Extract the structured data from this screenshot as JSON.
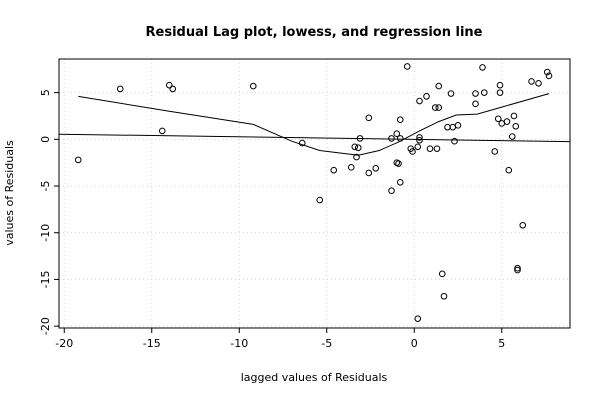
{
  "chart_data": {
    "type": "scatter",
    "title": "Residual Lag plot, lowess, and regression line",
    "xlabel": "lagged values of Residuals",
    "ylabel": "values of Residuals",
    "xlim": [
      -20.3,
      8.9
    ],
    "ylim": [
      -20.2,
      8.6
    ],
    "grid": true,
    "x_ticks": [
      -20,
      -15,
      -10,
      -5,
      0,
      5
    ],
    "y_ticks": [
      -20,
      -15,
      -10,
      -5,
      0,
      5
    ],
    "x_tick_labels": [
      "-20",
      "-15",
      "-10",
      "-5",
      "0",
      "5"
    ],
    "y_tick_labels": [
      "-20",
      "-15",
      "-10",
      "-5",
      "0",
      "5"
    ],
    "points": [
      {
        "x": -19.2,
        "y": -2.2
      },
      {
        "x": -16.8,
        "y": 5.4
      },
      {
        "x": -14.4,
        "y": 0.9
      },
      {
        "x": -14.0,
        "y": 5.8
      },
      {
        "x": -13.8,
        "y": 5.4
      },
      {
        "x": -9.2,
        "y": 5.7
      },
      {
        "x": -6.4,
        "y": -0.4
      },
      {
        "x": -5.4,
        "y": -6.5
      },
      {
        "x": -4.6,
        "y": -3.3
      },
      {
        "x": -3.6,
        "y": -3.0
      },
      {
        "x": -3.4,
        "y": -0.8
      },
      {
        "x": -3.2,
        "y": -0.9
      },
      {
        "x": -3.3,
        "y": -1.9
      },
      {
        "x": -3.1,
        "y": 0.1
      },
      {
        "x": -2.6,
        "y": 2.3
      },
      {
        "x": -2.6,
        "y": -3.6
      },
      {
        "x": -2.2,
        "y": -3.1
      },
      {
        "x": -1.3,
        "y": -5.5
      },
      {
        "x": -1.3,
        "y": 0.1
      },
      {
        "x": -1.0,
        "y": 0.6
      },
      {
        "x": -1.0,
        "y": -2.5
      },
      {
        "x": -0.9,
        "y": -2.6
      },
      {
        "x": -0.8,
        "y": 2.1
      },
      {
        "x": -0.8,
        "y": 0.1
      },
      {
        "x": -0.8,
        "y": -4.6
      },
      {
        "x": -0.4,
        "y": 7.8
      },
      {
        "x": -0.2,
        "y": -1.0
      },
      {
        "x": -0.1,
        "y": -1.3
      },
      {
        "x": 0.2,
        "y": -0.8
      },
      {
        "x": 0.3,
        "y": 0.2
      },
      {
        "x": 0.3,
        "y": 4.1
      },
      {
        "x": 0.2,
        "y": -19.2
      },
      {
        "x": 0.3,
        "y": -0.1
      },
      {
        "x": 0.7,
        "y": 4.6
      },
      {
        "x": 0.9,
        "y": -1.0
      },
      {
        "x": 1.2,
        "y": 3.4
      },
      {
        "x": 1.4,
        "y": 3.4
      },
      {
        "x": 1.4,
        "y": 5.7
      },
      {
        "x": 1.3,
        "y": -1.0
      },
      {
        "x": 1.6,
        "y": -14.4
      },
      {
        "x": 1.7,
        "y": -16.8
      },
      {
        "x": 1.9,
        "y": 1.3
      },
      {
        "x": 2.1,
        "y": 4.9
      },
      {
        "x": 2.2,
        "y": 1.3
      },
      {
        "x": 2.3,
        "y": -0.2
      },
      {
        "x": 2.5,
        "y": 1.5
      },
      {
        "x": 3.5,
        "y": 4.9
      },
      {
        "x": 3.5,
        "y": 3.8
      },
      {
        "x": 3.9,
        "y": 7.7
      },
      {
        "x": 4.0,
        "y": 5.0
      },
      {
        "x": 4.6,
        "y": -1.3
      },
      {
        "x": 4.8,
        "y": 2.2
      },
      {
        "x": 4.9,
        "y": 5.8
      },
      {
        "x": 4.9,
        "y": 5.0
      },
      {
        "x": 5.0,
        "y": 1.7
      },
      {
        "x": 5.3,
        "y": 1.9
      },
      {
        "x": 5.4,
        "y": -3.3
      },
      {
        "x": 5.6,
        "y": 0.3
      },
      {
        "x": 5.7,
        "y": 2.5
      },
      {
        "x": 5.8,
        "y": 1.4
      },
      {
        "x": 5.9,
        "y": -13.8
      },
      {
        "x": 5.9,
        "y": -14.0
      },
      {
        "x": 6.2,
        "y": -9.2
      },
      {
        "x": 6.7,
        "y": 6.2
      },
      {
        "x": 7.1,
        "y": 6.0
      },
      {
        "x": 7.6,
        "y": 7.2
      },
      {
        "x": 7.7,
        "y": 6.8
      }
    ],
    "lowess": [
      {
        "x": -19.2,
        "y": 4.6
      },
      {
        "x": -14.0,
        "y": 3.0
      },
      {
        "x": -9.2,
        "y": 1.6
      },
      {
        "x": -7.0,
        "y": -0.2
      },
      {
        "x": -5.4,
        "y": -1.2
      },
      {
        "x": -3.2,
        "y": -1.7
      },
      {
        "x": -2.0,
        "y": -1.2
      },
      {
        "x": -0.9,
        "y": -0.3
      },
      {
        "x": 0.3,
        "y": 0.9
      },
      {
        "x": 1.4,
        "y": 1.9
      },
      {
        "x": 2.4,
        "y": 2.6
      },
      {
        "x": 3.6,
        "y": 2.7
      },
      {
        "x": 4.9,
        "y": 3.4
      },
      {
        "x": 7.7,
        "y": 4.9
      }
    ],
    "regression": [
      {
        "x": -20.3,
        "y": 0.55
      },
      {
        "x": 8.9,
        "y": -0.25
      }
    ]
  }
}
